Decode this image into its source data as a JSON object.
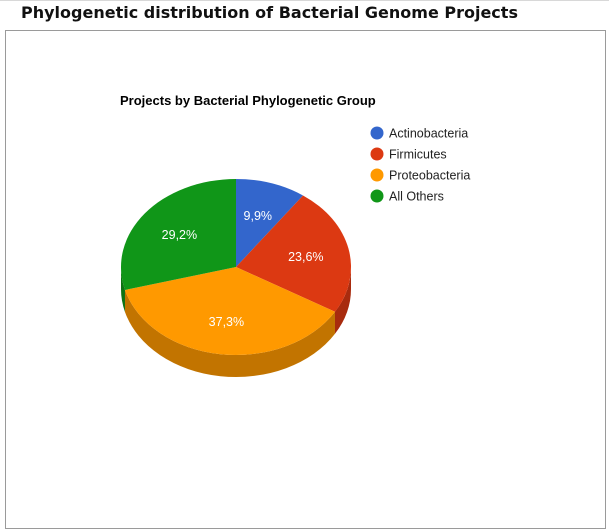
{
  "page": {
    "heading": "Phylogenetic distribution of Bacterial Genome Projects"
  },
  "chart_data": {
    "type": "pie",
    "title": "Projects by Bacterial Phylogenetic Group",
    "three_d": true,
    "legend_position": "right",
    "slices": [
      {
        "name": "Actinobacteria",
        "value": 9.9,
        "label": "9,9%",
        "color": "#3366cc",
        "side_color": "#26509c"
      },
      {
        "name": "Firmicutes",
        "value": 23.6,
        "label": "23,6%",
        "color": "#dc3912",
        "side_color": "#a82b0e"
      },
      {
        "name": "Proteobacteria",
        "value": 37.3,
        "label": "37,3%",
        "color": "#ff9900",
        "side_color": "#c27400"
      },
      {
        "name": "All Others",
        "value": 29.2,
        "label": "29,2%",
        "color": "#109618",
        "side_color": "#0c7212"
      }
    ]
  }
}
